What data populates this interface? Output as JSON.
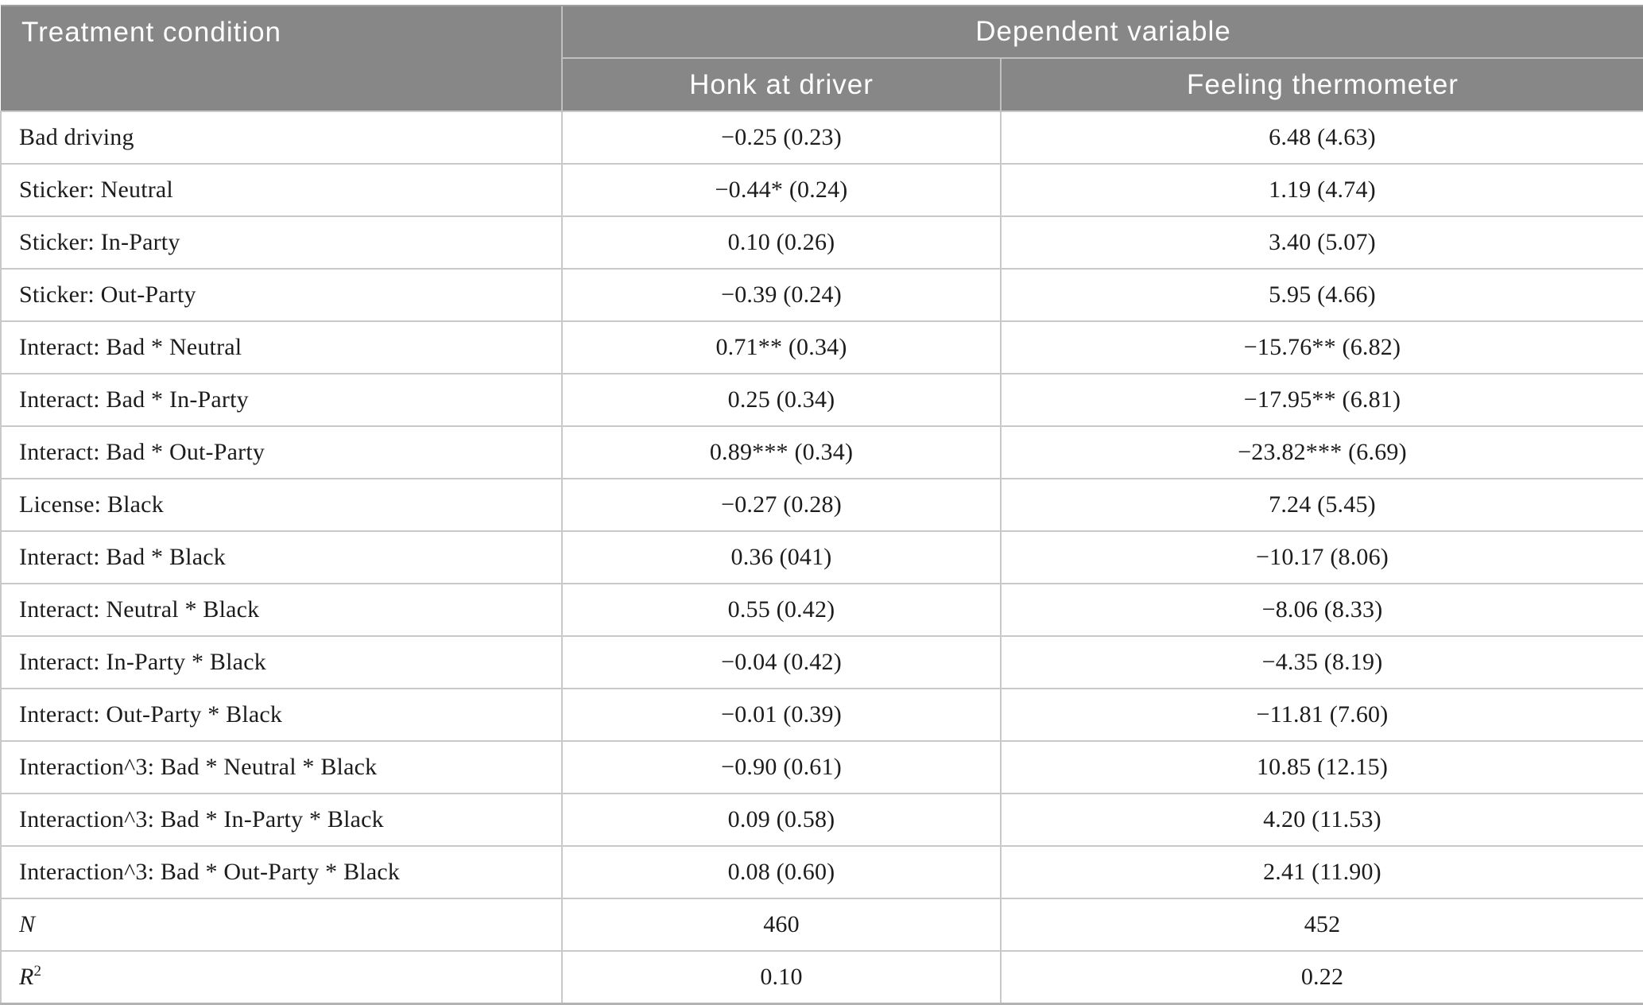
{
  "table": {
    "header": {
      "treatment_condition": "Treatment condition",
      "dependent_variable": "Dependent variable",
      "honk_at_driver": "Honk at driver",
      "feeling_thermometer": "Feeling thermometer"
    },
    "rows": [
      {
        "label": "Bad driving",
        "honk": "−0.25 (0.23)",
        "thermometer": "6.48 (4.63)",
        "italic": false
      },
      {
        "label": "Sticker: Neutral",
        "honk": "−0.44* (0.24)",
        "thermometer": "1.19 (4.74)",
        "italic": false
      },
      {
        "label": "Sticker: In-Party",
        "honk": "0.10 (0.26)",
        "thermometer": "3.40 (5.07)",
        "italic": false
      },
      {
        "label": "Sticker: Out-Party",
        "honk": "−0.39 (0.24)",
        "thermometer": "5.95 (4.66)",
        "italic": false
      },
      {
        "label": "Interact: Bad * Neutral",
        "honk": "0.71** (0.34)",
        "thermometer": "−15.76** (6.82)",
        "italic": false
      },
      {
        "label": "Interact: Bad * In-Party",
        "honk": "0.25 (0.34)",
        "thermometer": "−17.95** (6.81)",
        "italic": false
      },
      {
        "label": "Interact: Bad * Out-Party",
        "honk": "0.89*** (0.34)",
        "thermometer": "−23.82*** (6.69)",
        "italic": false
      },
      {
        "label": "License: Black",
        "honk": "−0.27 (0.28)",
        "thermometer": "7.24 (5.45)",
        "italic": false
      },
      {
        "label": "Interact: Bad * Black",
        "honk": "0.36 (041)",
        "thermometer": "−10.17 (8.06)",
        "italic": false
      },
      {
        "label": "Interact: Neutral * Black",
        "honk": "0.55 (0.42)",
        "thermometer": "−8.06 (8.33)",
        "italic": false
      },
      {
        "label": "Interact: In-Party * Black",
        "honk": "−0.04 (0.42)",
        "thermometer": "−4.35 (8.19)",
        "italic": false
      },
      {
        "label": "Interact: Out-Party * Black",
        "honk": "−0.01 (0.39)",
        "thermometer": "−11.81 (7.60)",
        "italic": false
      },
      {
        "label": "Interaction^3: Bad * Neutral * Black",
        "honk": "−0.90 (0.61)",
        "thermometer": "10.85 (12.15)",
        "italic": false
      },
      {
        "label": "Interaction^3: Bad * In-Party * Black",
        "honk": "0.09 (0.58)",
        "thermometer": "4.20 (11.53)",
        "italic": false
      },
      {
        "label": "Interaction^3: Bad * Out-Party * Black",
        "honk": "0.08 (0.60)",
        "thermometer": "2.41 (11.90)",
        "italic": false
      },
      {
        "label": "N",
        "honk": "460",
        "thermometer": "452",
        "italic": true
      },
      {
        "label": "R",
        "label_sup": "2",
        "honk": "0.10",
        "thermometer": "0.22",
        "italic": true
      }
    ],
    "colors": {
      "header_bg": "#878787",
      "header_text": "#ffffff",
      "header_line": "#c0c0c0",
      "grid_line": "#c9c9c9",
      "bottom_border": "#b3b3b3",
      "body_text": "#1c1c1c",
      "page_bg": "#ffffff"
    }
  }
}
